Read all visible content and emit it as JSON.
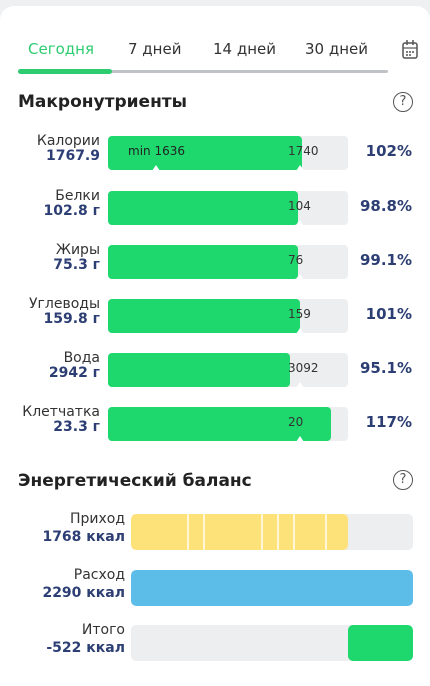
{
  "tabs": [
    {
      "label": "Сегодня",
      "active": true
    },
    {
      "label": "7 дней",
      "active": false
    },
    {
      "label": "14 дней",
      "active": false
    },
    {
      "label": "30 дней",
      "active": false
    }
  ],
  "colors": {
    "accent": "#2ecc71",
    "bar_green": "#1ed86d",
    "bar_yellow": "#fde27a",
    "bar_blue": "#5bbde8",
    "value_text": "#2c3e73"
  },
  "macros": {
    "title": "Макронутриенты",
    "help": "?",
    "rows": [
      {
        "label": "Калории",
        "value": "1767.9",
        "target": "1740",
        "min": "min 1636",
        "percent": "102%",
        "fill": 0.81,
        "target_pos": 0.8,
        "min_pos": 0.2
      },
      {
        "label": "Белки",
        "value": "102.8 г",
        "target": "104",
        "percent": "98.8%",
        "fill": 0.79,
        "target_pos": 0.8
      },
      {
        "label": "Жиры",
        "value": "75.3 г",
        "target": "76",
        "percent": "99.1%",
        "fill": 0.79,
        "target_pos": 0.8
      },
      {
        "label": "Углеводы",
        "value": "159.8 г",
        "target": "159",
        "percent": "101%",
        "fill": 0.8,
        "target_pos": 0.8
      },
      {
        "label": "Вода",
        "value": "2942 г",
        "target": "3092",
        "percent": "95.1%",
        "fill": 0.76,
        "target_pos": 0.8
      },
      {
        "label": "Клетчатка",
        "value": "23.3 г",
        "target": "20",
        "percent": "117%",
        "fill": 0.93,
        "target_pos": 0.8
      }
    ]
  },
  "energy": {
    "title": "Энергетический баланс",
    "help": "?",
    "rows": [
      {
        "label": "Приход",
        "value": "1768 ккал",
        "fill": 0.77
      },
      {
        "label": "Расход",
        "value": "2290 ккал",
        "fill": 1.0
      },
      {
        "label": "Итого",
        "value": "-522 ккал",
        "fill": 0.23
      }
    ]
  }
}
